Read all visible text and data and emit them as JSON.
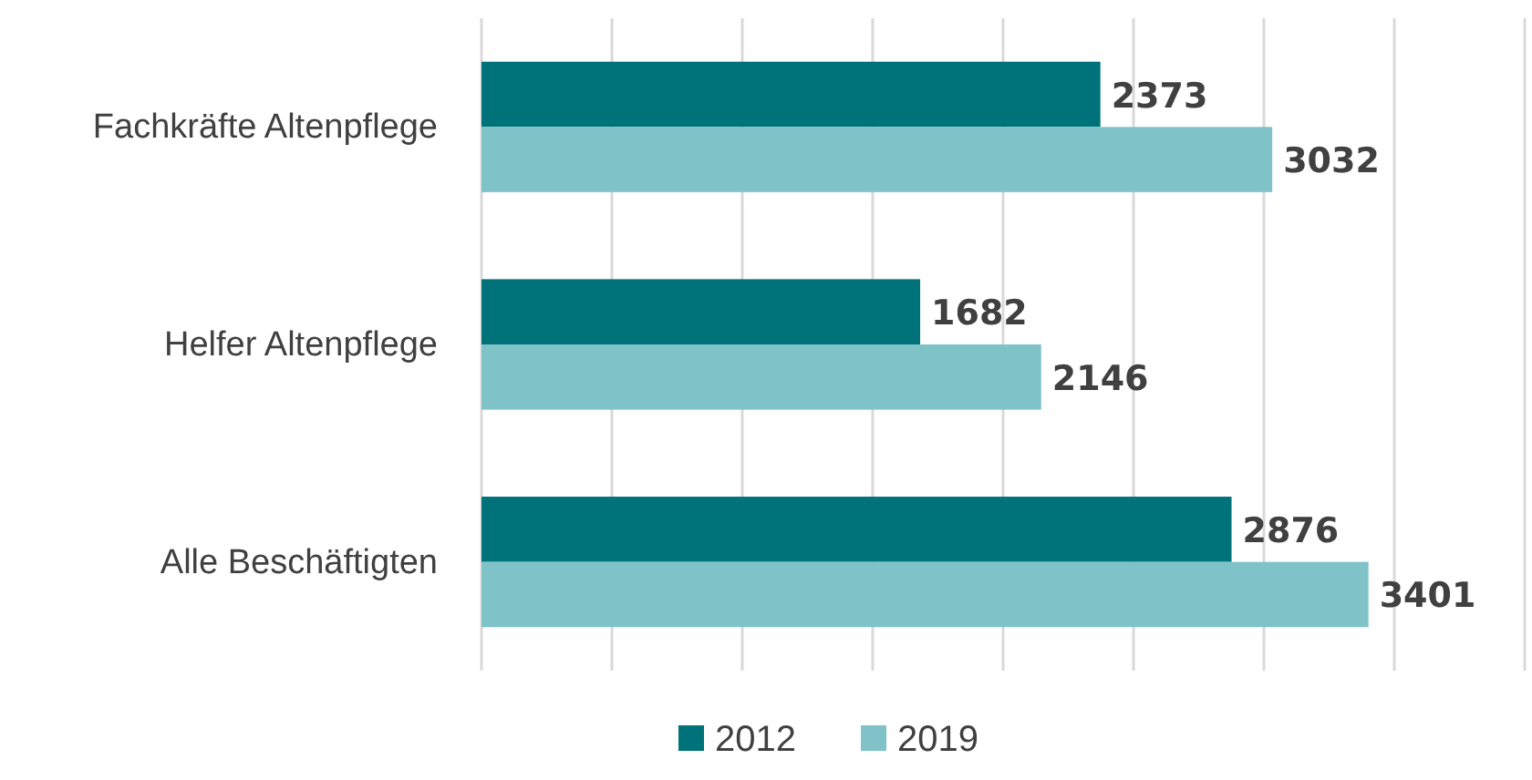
{
  "chart_data": {
    "type": "bar",
    "orientation": "horizontal",
    "categories": [
      "Fachkräfte Altenpflege",
      "Helfer Altenpflege",
      "Alle Beschäftigten"
    ],
    "series": [
      {
        "name": "2012",
        "color": "#00727a",
        "values": [
          2373,
          1682,
          2876
        ]
      },
      {
        "name": "2019",
        "color": "#7fc3c8",
        "values": [
          3032,
          2146,
          3401
        ]
      }
    ],
    "xlim": [
      0,
      4000
    ],
    "xticks": [
      {
        "value": 0,
        "label": null
      },
      {
        "value": 500,
        "label": null
      },
      {
        "value": 1000,
        "label": null
      },
      {
        "value": 1500,
        "label": null
      },
      {
        "value": 2000,
        "label": null
      },
      {
        "value": 2500,
        "label": null
      },
      {
        "value": 3000,
        "label": null
      },
      {
        "value": 3500,
        "label": null
      },
      {
        "value": 4000,
        "label": null
      }
    ],
    "tick_labels": "y",
    "grid": "x",
    "data_labels": true,
    "legend": "bottom"
  }
}
